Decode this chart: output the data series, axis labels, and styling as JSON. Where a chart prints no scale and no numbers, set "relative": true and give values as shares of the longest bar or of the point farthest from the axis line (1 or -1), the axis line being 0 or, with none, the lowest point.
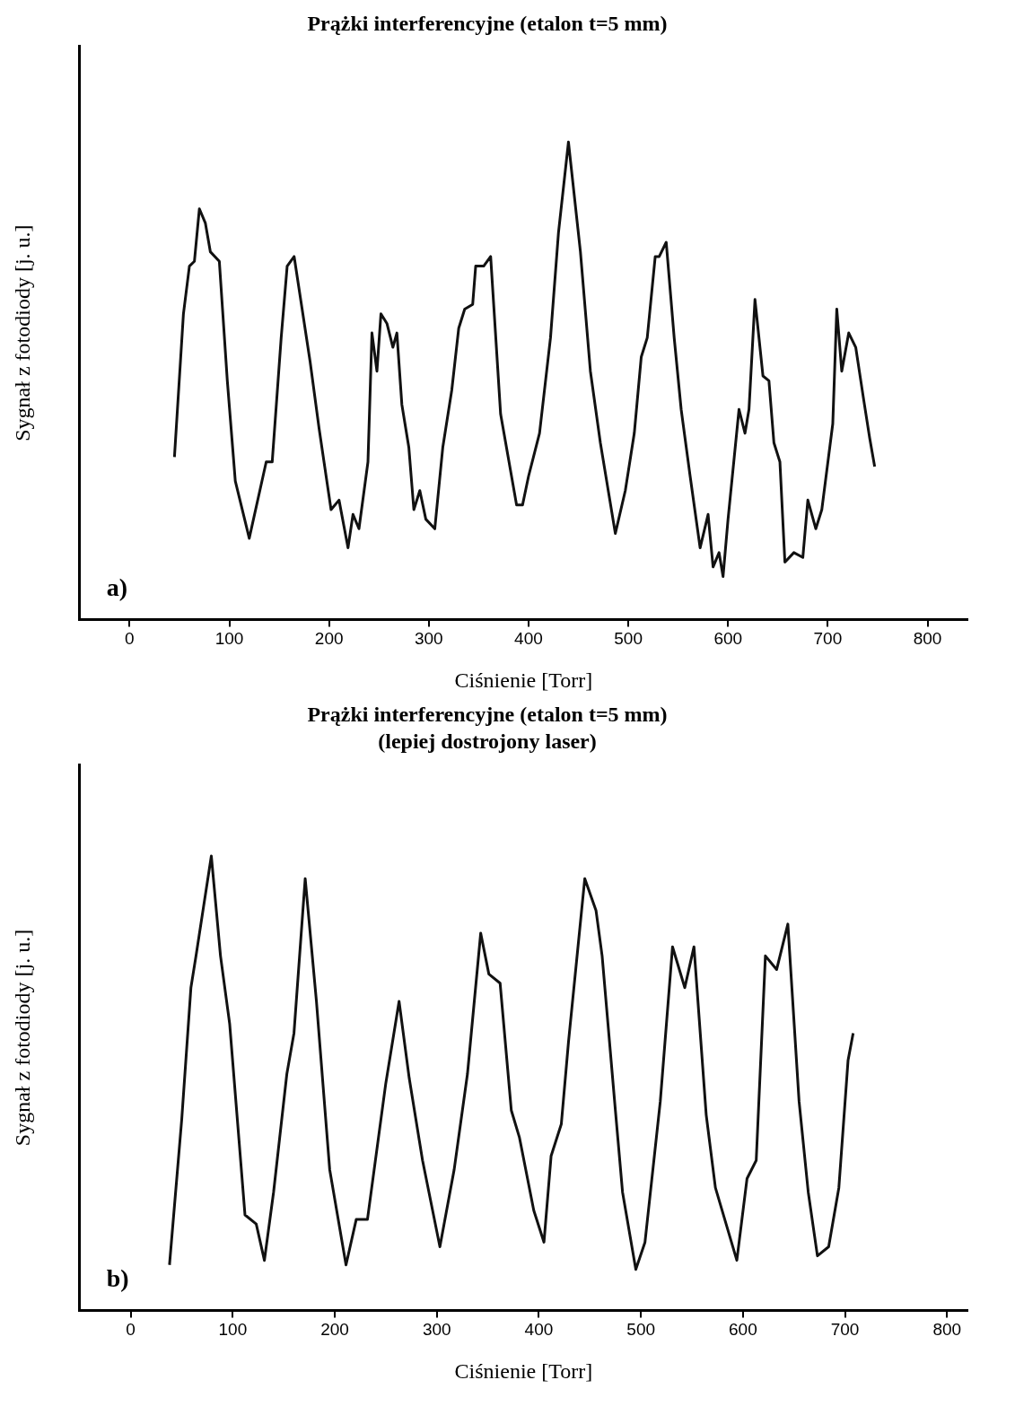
{
  "chart_data": [
    {
      "type": "line",
      "title": "Prążki interferencyjne (etalon t=5 mm)",
      "xlabel": "Ciśnienie [Torr]",
      "ylabel": "Sygnał z fotodiody [j. u.]",
      "annotations": [
        "a)"
      ],
      "relative": true,
      "xlim": [
        -50,
        840
      ],
      "xticks": [
        0,
        100,
        200,
        300,
        400,
        500,
        600,
        700,
        800
      ],
      "tick_labels": "x",
      "grid": false,
      "legend": false,
      "marker": "none",
      "line_style": "solid",
      "series": [
        {
          "color": "#111111",
          "x": [
            45,
            54,
            60,
            65,
            70,
            76,
            81,
            90,
            98,
            106,
            120,
            137,
            143,
            152,
            158,
            165,
            181,
            190,
            202,
            210,
            219,
            224,
            230,
            239,
            243,
            248,
            252,
            258,
            264,
            268,
            273,
            280,
            285,
            291,
            297,
            306,
            314,
            323,
            330,
            336,
            344,
            347,
            355,
            362,
            372,
            388,
            394,
            400,
            411,
            422,
            430,
            440,
            452,
            462,
            472,
            487,
            497,
            506,
            513,
            519,
            527,
            531,
            538,
            546,
            553,
            562,
            572,
            580,
            585,
            591,
            595,
            600,
            611,
            617,
            621,
            627,
            635,
            641,
            646,
            652,
            657,
            666,
            675,
            680,
            688,
            694,
            705,
            709,
            714,
            721,
            728,
            736,
            742,
            747
          ],
          "values": [
            0.34,
            0.64,
            0.74,
            0.75,
            0.86,
            0.83,
            0.77,
            0.75,
            0.5,
            0.29,
            0.17,
            0.33,
            0.33,
            0.59,
            0.74,
            0.76,
            0.54,
            0.4,
            0.23,
            0.25,
            0.15,
            0.22,
            0.19,
            0.33,
            0.6,
            0.52,
            0.64,
            0.62,
            0.57,
            0.6,
            0.45,
            0.36,
            0.23,
            0.27,
            0.21,
            0.19,
            0.36,
            0.48,
            0.61,
            0.65,
            0.66,
            0.74,
            0.74,
            0.76,
            0.43,
            0.24,
            0.24,
            0.3,
            0.39,
            0.59,
            0.81,
            1,
            0.77,
            0.52,
            0.37,
            0.18,
            0.27,
            0.39,
            0.55,
            0.59,
            0.76,
            0.76,
            0.79,
            0.59,
            0.44,
            0.3,
            0.15,
            0.22,
            0.11,
            0.14,
            0.09,
            0.21,
            0.44,
            0.39,
            0.44,
            0.67,
            0.51,
            0.5,
            0.37,
            0.33,
            0.12,
            0.14,
            0.13,
            0.25,
            0.19,
            0.23,
            0.41,
            0.65,
            0.52,
            0.6,
            0.57,
            0.46,
            0.38,
            0.32
          ]
        }
      ]
    },
    {
      "type": "line",
      "title": "Prążki interferencyjne (etalon t=5 mm)",
      "subtitle": "(lepiej dostrojony laser)",
      "xlabel": "Ciśnienie [Torr]",
      "ylabel": "Sygnał z fotodiody [j. u.]",
      "annotations": [
        "b)"
      ],
      "relative": true,
      "xlim": [
        -50,
        820
      ],
      "xticks": [
        0,
        100,
        200,
        300,
        400,
        500,
        600,
        700,
        800
      ],
      "tick_labels": "x",
      "grid": false,
      "legend": false,
      "marker": "none",
      "line_style": "solid",
      "series": [
        {
          "color": "#111111",
          "x": [
            38,
            50,
            59,
            64,
            79,
            88,
            97,
            112,
            123,
            131,
            140,
            153,
            160,
            171,
            182,
            195,
            211,
            221,
            232,
            250,
            263,
            273,
            286,
            303,
            317,
            330,
            343,
            351,
            362,
            373,
            381,
            395,
            405,
            412,
            422,
            429,
            445,
            456,
            462,
            475,
            482,
            495,
            504,
            519,
            531,
            543,
            552,
            564,
            573,
            594,
            604,
            613,
            622,
            633,
            644,
            655,
            664,
            673,
            684,
            694,
            703,
            708
          ],
          "values": [
            0.1,
            0.42,
            0.71,
            0.78,
            1,
            0.78,
            0.63,
            0.21,
            0.19,
            0.11,
            0.26,
            0.52,
            0.61,
            0.95,
            0.68,
            0.31,
            0.1,
            0.2,
            0.2,
            0.5,
            0.68,
            0.51,
            0.33,
            0.14,
            0.31,
            0.52,
            0.83,
            0.74,
            0.72,
            0.44,
            0.38,
            0.22,
            0.15,
            0.34,
            0.41,
            0.59,
            0.95,
            0.88,
            0.78,
            0.44,
            0.26,
            0.09,
            0.15,
            0.46,
            0.8,
            0.71,
            0.8,
            0.43,
            0.27,
            0.11,
            0.29,
            0.33,
            0.78,
            0.75,
            0.85,
            0.46,
            0.26,
            0.12,
            0.14,
            0.27,
            0.55,
            0.61
          ]
        }
      ]
    }
  ]
}
